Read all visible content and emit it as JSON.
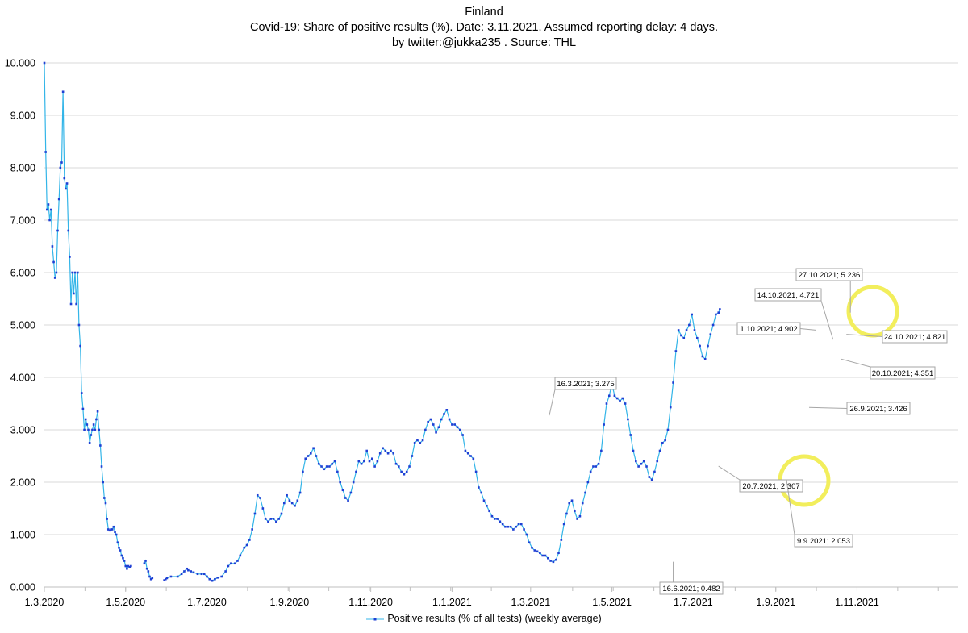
{
  "title": {
    "line1": "Finland",
    "line2": "Covid-19: Share of positive results (%). Date: 3.11.2021.  Assumed reporting delay: 4 days.",
    "line3": "by twitter:@jukka235 . Source: THL"
  },
  "colors": {
    "line": "#33b5e8",
    "marker": "#1f3fd4",
    "grid": "#d9d9d9",
    "axis": "#bfbfbf",
    "highlight": "#f2ee5c",
    "annotation_border": "#a6a6a6"
  },
  "chart_data": {
    "type": "line",
    "title": "Covid-19: Share of positive results (%)",
    "xlabel": "",
    "ylabel": "",
    "ylim": [
      0,
      10
    ],
    "yticks": [
      0,
      1,
      2,
      3,
      4,
      5,
      6,
      7,
      8,
      9,
      10
    ],
    "ytick_labels": [
      "0.000",
      "1.000",
      "2.000",
      "3.000",
      "4.000",
      "5.000",
      "6.000",
      "7.000",
      "8.000",
      "9.000",
      "10.000"
    ],
    "x_start_day": 0,
    "x_end_day": 686,
    "xticks": [
      {
        "day": 0,
        "label": "1.3.2020"
      },
      {
        "day": 61,
        "label": "1.5.2020"
      },
      {
        "day": 122,
        "label": "1.7.2020"
      },
      {
        "day": 184,
        "label": "1.9.2020"
      },
      {
        "day": 245,
        "label": "1.11.2020"
      },
      {
        "day": 306,
        "label": "1.1.2021"
      },
      {
        "day": 365,
        "label": "1.3.2021"
      },
      {
        "day": 426,
        "label": "1.5.2021"
      },
      {
        "day": 487,
        "label": "1.7.2021"
      },
      {
        "day": 549,
        "label": "1.9.2021"
      },
      {
        "day": 610,
        "label": "1.11.2021"
      }
    ],
    "legend": "Positive results (% of all tests) (weekly average)",
    "legend_position": "bottom",
    "series": [
      {
        "name": "Positive results (% of all tests) (weekly average)",
        "points": [
          [
            0,
            10.0
          ],
          [
            1,
            8.3
          ],
          [
            2,
            7.2
          ],
          [
            3,
            7.3
          ],
          [
            4,
            7.0
          ],
          [
            5,
            7.2
          ],
          [
            6,
            6.5
          ],
          [
            7,
            6.2
          ],
          [
            8,
            5.9
          ],
          [
            9,
            6.0
          ],
          [
            10,
            6.8
          ],
          [
            11,
            7.4
          ],
          [
            12,
            8.0
          ],
          [
            13,
            8.1
          ],
          [
            14,
            9.45
          ],
          [
            15,
            7.8
          ],
          [
            16,
            7.6
          ],
          [
            17,
            7.7
          ],
          [
            18,
            6.8
          ],
          [
            19,
            6.3
          ],
          [
            20,
            5.4
          ],
          [
            21,
            6.0
          ],
          [
            22,
            5.6
          ],
          [
            23,
            6.0
          ],
          [
            24,
            5.4
          ],
          [
            25,
            6.0
          ],
          [
            26,
            5.0
          ],
          [
            27,
            4.6
          ],
          [
            28,
            3.7
          ],
          [
            29,
            3.4
          ],
          [
            30,
            3.0
          ],
          [
            31,
            3.2
          ],
          [
            32,
            3.1
          ],
          [
            33,
            3.0
          ],
          [
            34,
            2.75
          ],
          [
            35,
            2.9
          ],
          [
            36,
            3.0
          ],
          [
            37,
            3.1
          ],
          [
            38,
            3.0
          ],
          [
            39,
            3.2
          ],
          [
            40,
            3.35
          ],
          [
            41,
            3.0
          ],
          [
            42,
            2.7
          ],
          [
            43,
            2.3
          ],
          [
            44,
            2.0
          ],
          [
            45,
            1.7
          ],
          [
            46,
            1.6
          ],
          [
            47,
            1.3
          ],
          [
            48,
            1.1
          ],
          [
            49,
            1.08
          ],
          [
            50,
            1.1
          ],
          [
            51,
            1.1
          ],
          [
            52,
            1.15
          ],
          [
            53,
            1.05
          ],
          [
            54,
            1.0
          ],
          [
            55,
            0.85
          ],
          [
            56,
            0.75
          ],
          [
            57,
            0.7
          ],
          [
            58,
            0.6
          ],
          [
            59,
            0.55
          ],
          [
            60,
            0.5
          ],
          [
            61,
            0.4
          ],
          [
            62,
            0.35
          ],
          [
            63,
            0.4
          ],
          [
            64,
            0.38
          ],
          [
            65,
            0.4
          ],
          [
            75,
            0.45
          ],
          [
            76,
            0.5
          ],
          [
            77,
            0.35
          ],
          [
            78,
            0.3
          ],
          [
            79,
            0.2
          ],
          [
            80,
            0.15
          ],
          [
            81,
            0.17
          ],
          [
            90,
            0.13
          ],
          [
            91,
            0.15
          ],
          [
            92,
            0.17
          ],
          [
            95,
            0.2
          ],
          [
            100,
            0.2
          ],
          [
            103,
            0.25
          ],
          [
            105,
            0.3
          ],
          [
            107,
            0.35
          ],
          [
            108,
            0.32
          ],
          [
            110,
            0.3
          ],
          [
            112,
            0.28
          ],
          [
            115,
            0.25
          ],
          [
            118,
            0.25
          ],
          [
            120,
            0.25
          ],
          [
            122,
            0.2
          ],
          [
            124,
            0.15
          ],
          [
            126,
            0.12
          ],
          [
            128,
            0.15
          ],
          [
            130,
            0.18
          ],
          [
            133,
            0.2
          ],
          [
            136,
            0.3
          ],
          [
            138,
            0.4
          ],
          [
            140,
            0.45
          ],
          [
            143,
            0.45
          ],
          [
            145,
            0.5
          ],
          [
            147,
            0.6
          ],
          [
            150,
            0.75
          ],
          [
            152,
            0.8
          ],
          [
            154,
            0.9
          ],
          [
            156,
            1.1
          ],
          [
            158,
            1.4
          ],
          [
            160,
            1.75
          ],
          [
            162,
            1.7
          ],
          [
            164,
            1.5
          ],
          [
            166,
            1.3
          ],
          [
            168,
            1.25
          ],
          [
            170,
            1.3
          ],
          [
            172,
            1.3
          ],
          [
            174,
            1.25
          ],
          [
            176,
            1.3
          ],
          [
            178,
            1.4
          ],
          [
            180,
            1.6
          ],
          [
            182,
            1.75
          ],
          [
            184,
            1.65
          ],
          [
            186,
            1.6
          ],
          [
            188,
            1.55
          ],
          [
            190,
            1.65
          ],
          [
            192,
            1.8
          ],
          [
            194,
            2.2
          ],
          [
            196,
            2.45
          ],
          [
            198,
            2.5
          ],
          [
            200,
            2.55
          ],
          [
            202,
            2.65
          ],
          [
            204,
            2.5
          ],
          [
            206,
            2.35
          ],
          [
            208,
            2.3
          ],
          [
            210,
            2.25
          ],
          [
            212,
            2.3
          ],
          [
            214,
            2.3
          ],
          [
            216,
            2.35
          ],
          [
            218,
            2.4
          ],
          [
            220,
            2.2
          ],
          [
            222,
            2.0
          ],
          [
            224,
            1.85
          ],
          [
            226,
            1.7
          ],
          [
            228,
            1.65
          ],
          [
            230,
            1.8
          ],
          [
            232,
            2.0
          ],
          [
            234,
            2.2
          ],
          [
            236,
            2.4
          ],
          [
            238,
            2.35
          ],
          [
            240,
            2.4
          ],
          [
            242,
            2.6
          ],
          [
            244,
            2.4
          ],
          [
            246,
            2.45
          ],
          [
            248,
            2.3
          ],
          [
            250,
            2.4
          ],
          [
            252,
            2.55
          ],
          [
            254,
            2.65
          ],
          [
            256,
            2.6
          ],
          [
            258,
            2.55
          ],
          [
            260,
            2.6
          ],
          [
            262,
            2.55
          ],
          [
            264,
            2.35
          ],
          [
            266,
            2.3
          ],
          [
            268,
            2.2
          ],
          [
            270,
            2.15
          ],
          [
            272,
            2.2
          ],
          [
            274,
            2.3
          ],
          [
            276,
            2.5
          ],
          [
            278,
            2.75
          ],
          [
            280,
            2.8
          ],
          [
            282,
            2.75
          ],
          [
            284,
            2.8
          ],
          [
            286,
            3.0
          ],
          [
            288,
            3.15
          ],
          [
            290,
            3.2
          ],
          [
            292,
            3.1
          ],
          [
            294,
            2.95
          ],
          [
            296,
            3.05
          ],
          [
            298,
            3.2
          ],
          [
            300,
            3.3
          ],
          [
            302,
            3.38
          ],
          [
            304,
            3.2
          ],
          [
            306,
            3.1
          ],
          [
            308,
            3.1
          ],
          [
            310,
            3.05
          ],
          [
            312,
            3.0
          ],
          [
            314,
            2.9
          ],
          [
            316,
            2.6
          ],
          [
            318,
            2.55
          ],
          [
            320,
            2.5
          ],
          [
            322,
            2.45
          ],
          [
            324,
            2.2
          ],
          [
            326,
            1.9
          ],
          [
            328,
            1.8
          ],
          [
            330,
            1.65
          ],
          [
            332,
            1.55
          ],
          [
            334,
            1.45
          ],
          [
            336,
            1.35
          ],
          [
            338,
            1.3
          ],
          [
            340,
            1.3
          ],
          [
            342,
            1.25
          ],
          [
            344,
            1.2
          ],
          [
            346,
            1.15
          ],
          [
            348,
            1.15
          ],
          [
            350,
            1.15
          ],
          [
            352,
            1.1
          ],
          [
            354,
            1.15
          ],
          [
            356,
            1.2
          ],
          [
            358,
            1.2
          ],
          [
            360,
            1.1
          ],
          [
            362,
            1.0
          ],
          [
            364,
            0.85
          ],
          [
            366,
            0.75
          ],
          [
            368,
            0.7
          ],
          [
            370,
            0.68
          ],
          [
            372,
            0.65
          ],
          [
            374,
            0.6
          ],
          [
            376,
            0.6
          ],
          [
            378,
            0.55
          ],
          [
            380,
            0.5
          ],
          [
            382,
            0.48
          ],
          [
            384,
            0.52
          ],
          [
            386,
            0.65
          ],
          [
            388,
            0.9
          ],
          [
            390,
            1.2
          ],
          [
            392,
            1.4
          ],
          [
            394,
            1.6
          ],
          [
            396,
            1.65
          ],
          [
            398,
            1.45
          ],
          [
            400,
            1.3
          ],
          [
            402,
            1.35
          ],
          [
            404,
            1.6
          ],
          [
            406,
            1.8
          ],
          [
            408,
            2.0
          ],
          [
            410,
            2.2
          ],
          [
            412,
            2.3
          ],
          [
            414,
            2.3
          ],
          [
            416,
            2.35
          ],
          [
            418,
            2.6
          ],
          [
            420,
            3.1
          ],
          [
            422,
            3.5
          ],
          [
            424,
            3.65
          ],
          [
            426,
            3.88
          ],
          [
            428,
            3.65
          ],
          [
            430,
            3.6
          ],
          [
            432,
            3.55
          ],
          [
            434,
            3.6
          ],
          [
            436,
            3.5
          ],
          [
            438,
            3.2
          ],
          [
            440,
            2.9
          ],
          [
            442,
            2.6
          ],
          [
            444,
            2.4
          ],
          [
            446,
            2.3
          ],
          [
            448,
            2.35
          ],
          [
            450,
            2.4
          ],
          [
            452,
            2.3
          ],
          [
            454,
            2.1
          ],
          [
            456,
            2.05
          ],
          [
            458,
            2.2
          ],
          [
            460,
            2.4
          ],
          [
            462,
            2.6
          ],
          [
            464,
            2.75
          ],
          [
            466,
            2.8
          ],
          [
            468,
            3.0
          ],
          [
            470,
            3.43
          ],
          [
            472,
            3.9
          ],
          [
            474,
            4.5
          ],
          [
            476,
            4.9
          ],
          [
            478,
            4.8
          ],
          [
            480,
            4.75
          ],
          [
            482,
            4.9
          ],
          [
            484,
            5.0
          ],
          [
            486,
            5.2
          ],
          [
            488,
            4.9
          ],
          [
            490,
            4.75
          ],
          [
            492,
            4.6
          ],
          [
            494,
            4.4
          ],
          [
            496,
            4.35
          ],
          [
            498,
            4.6
          ],
          [
            500,
            4.82
          ],
          [
            502,
            5.0
          ],
          [
            504,
            5.2
          ],
          [
            506,
            5.236
          ],
          [
            507,
            5.3
          ]
        ]
      }
    ],
    "annotations": [
      {
        "label": "16.3.2021; 3.275",
        "day": 379,
        "value": 3.275
      },
      {
        "label": "16.6.2021; 0.482",
        "day": 472,
        "value": 0.482
      },
      {
        "label": "20.7.2021; 2.307",
        "day": 506,
        "value": 2.307
      },
      {
        "label": "9.9.2021; 2.053",
        "day": 557,
        "value": 2.053
      },
      {
        "label": "26.9.2021; 3.426",
        "day": 574,
        "value": 3.426
      },
      {
        "label": "1.10.2021; 4.902",
        "day": 579,
        "value": 4.902
      },
      {
        "label": "14.10.2021; 4.721",
        "day": 592,
        "value": 4.721
      },
      {
        "label": "20.10.2021; 4.351",
        "day": 598,
        "value": 4.351
      },
      {
        "label": "24.10.2021; 4.821",
        "day": 602,
        "value": 4.821
      },
      {
        "label": "27.10.2021; 5.236",
        "day": 605,
        "value": 5.236
      }
    ]
  }
}
